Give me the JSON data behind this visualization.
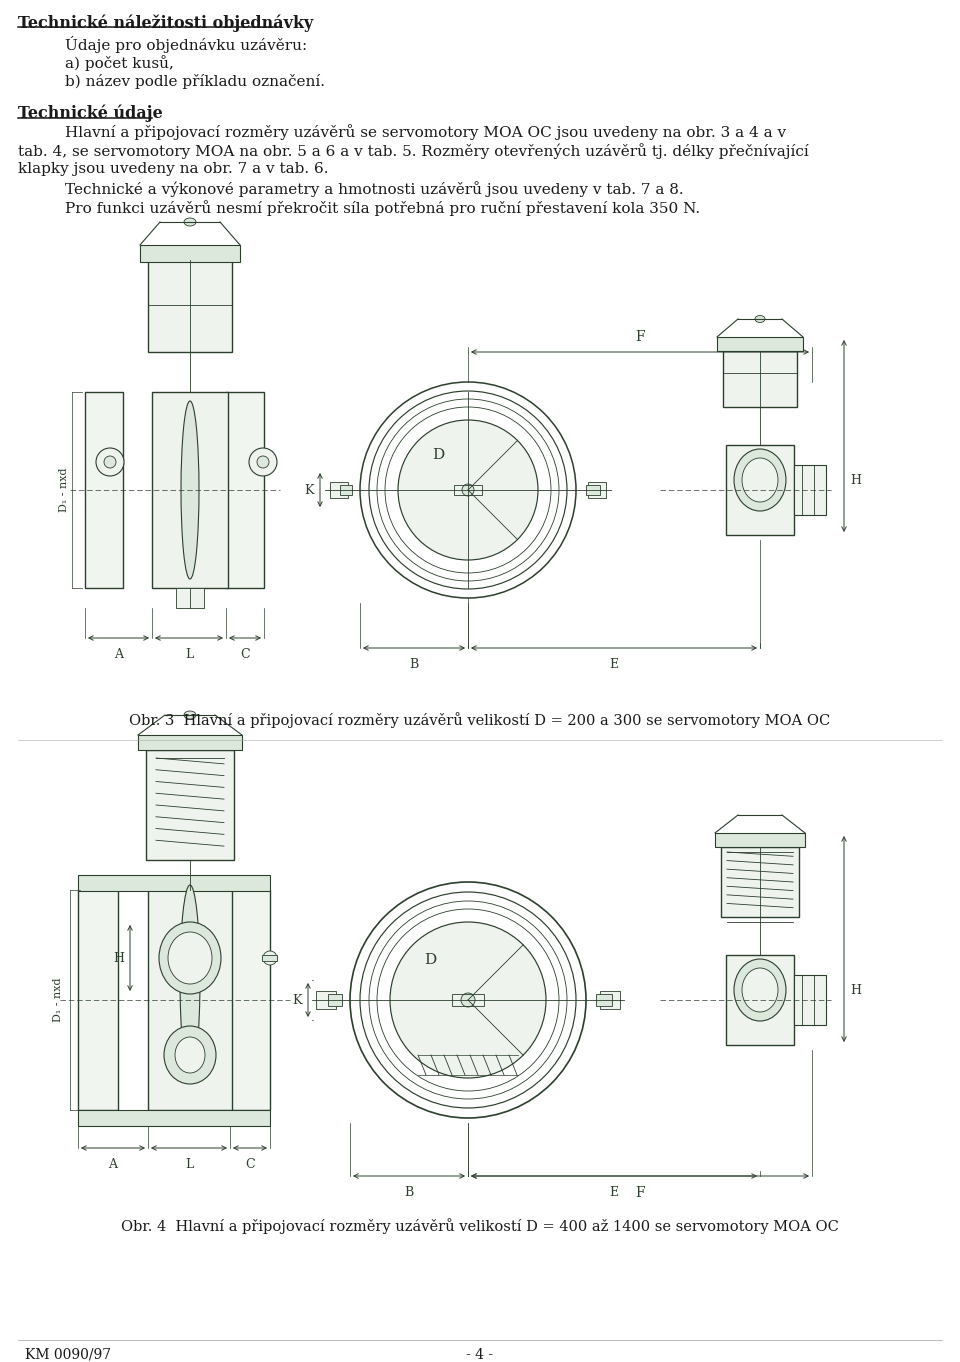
{
  "page_width": 9.6,
  "page_height": 13.62,
  "bg_color": "#ffffff",
  "title1": "Technické náležitosti objednávky",
  "text_lines": [
    "Údaje pro objednávku uzávěru:",
    "a) počet kusů,",
    "b) název podle příkladu označení."
  ],
  "title2": "Technické údaje",
  "body_text_line1": "Hlavní a připojovací rozměry uzávěrů se servomotory MOA OC jsou uvedeny na obr. 3 a 4 a v",
  "body_text_line2": "tab. 4, se servomotory MOA na obr. 5 a 6 a v tab. 5. Rozměry otevřených uzávěrů tj. délky přečnívající",
  "body_text_line3": "klapky jsou uvedeny na obr. 7 a v tab. 6.",
  "body_line1": "Technické a výkonové parametry a hmotnosti uzávěrů jsou uvedeny v tab. 7 a 8.",
  "body_line2": "Pro funkci uzávěrů nesmí překročit síla potřebná pro ruční přestavení kola 350 N.",
  "caption1": "Obr. 3  Hlavní a připojovací rozměry uzávěrů velikostí D = 200 a 300 se servomotory MOA OC",
  "caption2": "Obr. 4  Hlavní a připojovací rozměry uzávěrů velikostí D = 400 až 1400 se servomotory MOA OC",
  "footer_left": "KM 0090/97",
  "footer_center": "- 4 -",
  "text_color": "#1a1a1a",
  "drawing_color": "#2c3e2c",
  "drawing_color2": "#1a1a1a"
}
